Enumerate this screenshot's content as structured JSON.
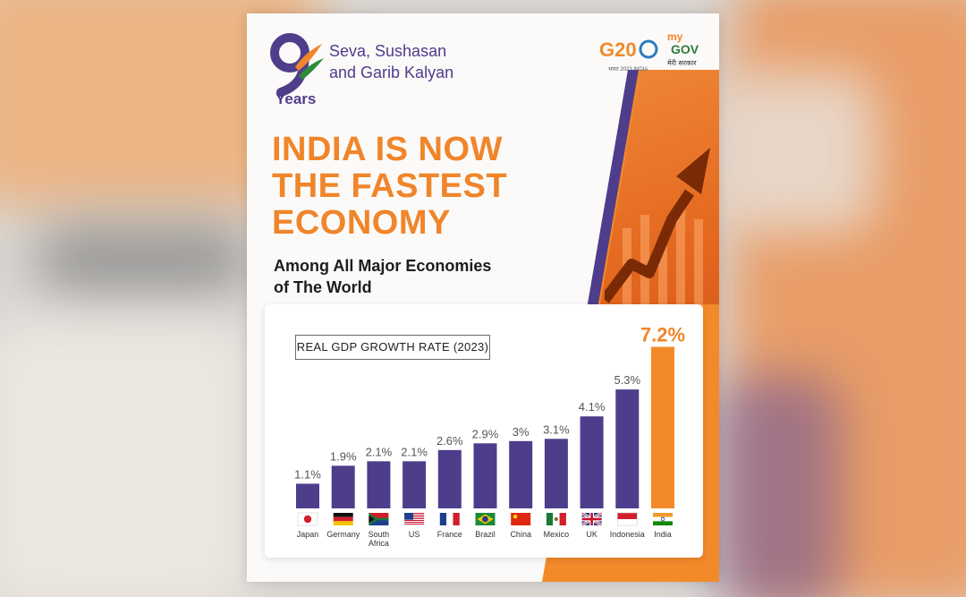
{
  "branding": {
    "logo_number": "9",
    "logo_years": "Years",
    "tagline_line1": "Seva, Sushasan",
    "tagline_line2": "and Garib Kalyan",
    "g20_label": "G20",
    "g20_sub": "भारत 2023 INDIA",
    "mygov_my": "my",
    "mygov_gov": "GOV",
    "mygov_sub": "मेरी सरकार"
  },
  "headline": {
    "line1": "INDIA IS NOW",
    "line2": "THE FASTEST",
    "line3": "ECONOMY",
    "sub_line1": "Among All Major Economies",
    "sub_line2": "of The World"
  },
  "colors": {
    "accent_orange": "#f0852a",
    "bar_purple": "#4e3d8b",
    "bar_highlight": "#f38a2a"
  },
  "chart_data": {
    "type": "bar",
    "title": "REAL GDP GROWTH RATE (2023)",
    "categories": [
      "Japan",
      "Germany",
      "South Africa",
      "US",
      "France",
      "Brazil",
      "China",
      "Mexico",
      "UK",
      "Indonesia",
      "India"
    ],
    "values": [
      1.1,
      1.9,
      2.1,
      2.1,
      2.6,
      2.9,
      3.0,
      3.1,
      4.1,
      5.3,
      7.2
    ],
    "data_labels": [
      "1.1%",
      "1.9%",
      "2.1%",
      "2.1%",
      "2.6%",
      "2.9%",
      "3%",
      "3.1%",
      "4.1%",
      "5.3%",
      "7.2%"
    ],
    "highlight": "India",
    "flag_icons": [
      "japan-flag-icon",
      "germany-flag-icon",
      "south-africa-flag-icon",
      "us-flag-icon",
      "france-flag-icon",
      "brazil-flag-icon",
      "china-flag-icon",
      "mexico-flag-icon",
      "uk-flag-icon",
      "indonesia-flag-icon",
      "india-flag-icon"
    ],
    "ylim": [
      0,
      7.5
    ],
    "grid": false,
    "xlabel": "",
    "ylabel": ""
  }
}
